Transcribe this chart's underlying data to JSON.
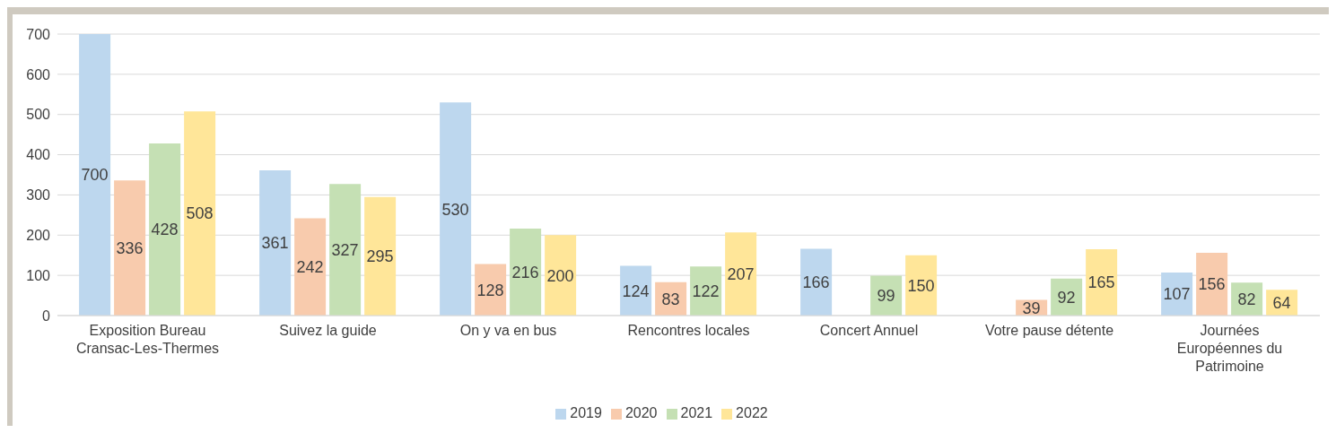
{
  "chart_data": {
    "type": "bar",
    "categories": [
      "Exposition Bureau Cransac-Les-Thermes",
      "Suivez la guide",
      "On y va en bus",
      "Rencontres locales",
      "Concert Annuel",
      "Votre pause détente",
      "Journées Européennes du Patrimoine"
    ],
    "series": [
      {
        "name": "2019",
        "color": "#bdd7ee",
        "values": [
          700,
          361,
          530,
          124,
          166,
          null,
          107
        ]
      },
      {
        "name": "2020",
        "color": "#f8cbad",
        "values": [
          336,
          242,
          128,
          83,
          null,
          39,
          156
        ]
      },
      {
        "name": "2021",
        "color": "#c5e0b4",
        "values": [
          428,
          327,
          216,
          122,
          99,
          92,
          82
        ]
      },
      {
        "name": "2022",
        "color": "#ffe699",
        "values": [
          508,
          295,
          200,
          207,
          150,
          165,
          64
        ]
      }
    ],
    "ylim": [
      0,
      700
    ],
    "yticks": [
      0,
      100,
      200,
      300,
      400,
      500,
      600,
      700
    ],
    "grid": "y",
    "legend": "bottom",
    "data_labels": true
  }
}
